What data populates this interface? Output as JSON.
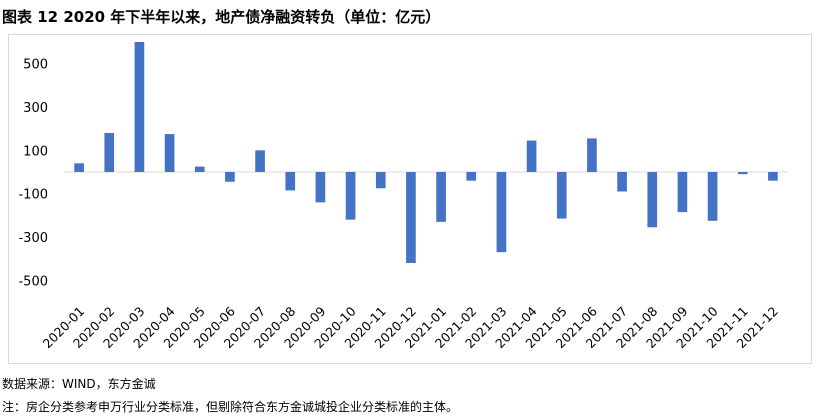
{
  "figure": {
    "title": "图表 12   2020 年下半年以来，地产债净融资转负（单位：亿元）",
    "source": "数据来源：WIND，东方金诚",
    "note": "注：房企分类参考申万行业分类标准，但剔除符合东方金诚城投企业分类标准的主体。"
  },
  "colors": {
    "bar": "#4472c4",
    "axis": "#d9d9d9"
  },
  "chart_data": {
    "type": "bar",
    "title": "",
    "xlabel": "",
    "ylabel": "",
    "ylim": [
      -600,
      600
    ],
    "yticks": [
      -500,
      -300,
      -100,
      100,
      300,
      500
    ],
    "grid": false,
    "legend": "none",
    "categories": [
      "2020-01",
      "2020-02",
      "2020-03",
      "2020-04",
      "2020-05",
      "2020-06",
      "2020-07",
      "2020-08",
      "2020-09",
      "2020-10",
      "2020-11",
      "2020-12",
      "2021-01",
      "2021-02",
      "2021-03",
      "2021-04",
      "2021-05",
      "2021-06",
      "2021-07",
      "2021-08",
      "2021-09",
      "2021-10",
      "2021-11",
      "2021-12"
    ],
    "values": [
      40,
      180,
      600,
      175,
      25,
      -45,
      100,
      -85,
      -140,
      -220,
      -75,
      -420,
      -230,
      -40,
      -370,
      145,
      -215,
      155,
      -90,
      -255,
      -185,
      -225,
      -10,
      -40
    ]
  }
}
